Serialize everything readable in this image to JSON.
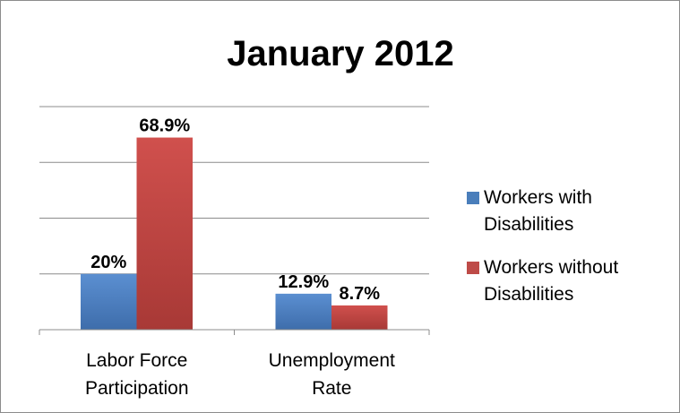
{
  "chart_data": {
    "type": "bar",
    "title": "January 2012",
    "categories": [
      [
        "Labor Force",
        "Participation"
      ],
      [
        "Unemployment",
        "Rate"
      ]
    ],
    "series": [
      {
        "name": [
          "Workers with",
          "Disabilities"
        ],
        "values": [
          20,
          12.9
        ],
        "labels": [
          "20%",
          "12.9%"
        ],
        "color": "#4a7ebb"
      },
      {
        "name": [
          "Workers without",
          "Disabilities"
        ],
        "values": [
          68.9,
          8.7
        ],
        "labels": [
          "68.9%",
          "8.7%"
        ],
        "color": "#be4b48"
      }
    ],
    "ylim": [
      0,
      80
    ],
    "grid": true,
    "legend": "right"
  }
}
